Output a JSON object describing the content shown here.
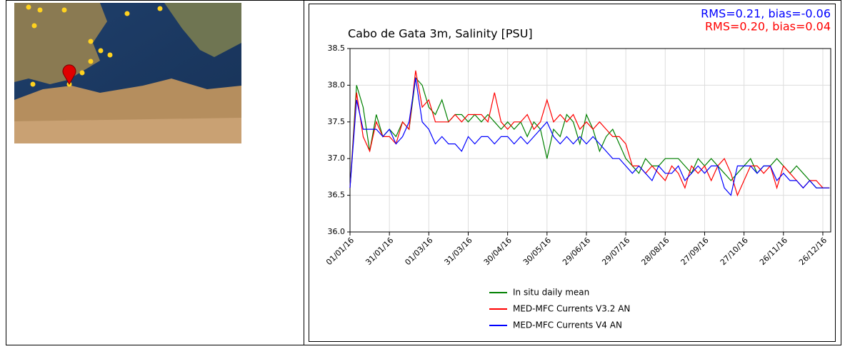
{
  "chart_data": {
    "type": "line",
    "title": "Cabo de Gata 3m, Salinity [PSU]",
    "annotations": [
      {
        "text": "RMS=0.21, bias=-0.06",
        "color": "#0000ff"
      },
      {
        "text": "RMS=0.20, bias=0.04",
        "color": "#ff0000"
      }
    ],
    "x": [
      "01/01/16",
      "06/01/16",
      "11/01/16",
      "16/01/16",
      "21/01/16",
      "26/01/16",
      "31/01/16",
      "05/02/16",
      "10/02/16",
      "15/02/16",
      "20/02/16",
      "25/02/16",
      "01/03/16",
      "06/03/16",
      "11/03/16",
      "16/03/16",
      "21/03/16",
      "26/03/16",
      "31/03/16",
      "05/04/16",
      "10/04/16",
      "15/04/16",
      "20/04/16",
      "25/04/16",
      "30/04/16",
      "05/05/16",
      "10/05/16",
      "15/05/16",
      "20/05/16",
      "25/05/16",
      "30/05/16",
      "04/06/16",
      "09/06/16",
      "14/06/16",
      "19/06/16",
      "24/06/16",
      "29/06/16",
      "04/07/16",
      "09/07/16",
      "14/07/16",
      "19/07/16",
      "24/07/16",
      "29/07/16",
      "03/08/16",
      "08/08/16",
      "13/08/16",
      "18/08/16",
      "23/08/16",
      "28/08/16",
      "02/09/16",
      "07/09/16",
      "12/09/16",
      "17/09/16",
      "22/09/16",
      "27/09/16",
      "02/10/16",
      "07/10/16",
      "12/10/16",
      "17/10/16",
      "22/10/16",
      "27/10/16",
      "01/11/16",
      "06/11/16",
      "11/11/16",
      "16/11/16",
      "21/11/16",
      "26/11/16",
      "01/12/16",
      "06/12/16",
      "11/12/16",
      "16/12/16",
      "21/12/16",
      "26/12/16",
      "31/12/16"
    ],
    "series": [
      {
        "name": "In situ daily mean",
        "color": "#008000",
        "values": [
          36.6,
          38.0,
          37.7,
          37.1,
          37.6,
          37.3,
          37.4,
          37.3,
          37.5,
          37.4,
          38.1,
          38.0,
          37.7,
          37.6,
          37.8,
          37.5,
          37.6,
          37.6,
          37.5,
          37.6,
          37.5,
          37.6,
          37.5,
          37.4,
          37.5,
          37.4,
          37.5,
          37.3,
          37.5,
          37.4,
          37.0,
          37.4,
          37.3,
          37.6,
          37.5,
          37.2,
          37.6,
          37.4,
          37.1,
          37.3,
          37.4,
          37.2,
          37.0,
          36.9,
          36.8,
          37.0,
          36.9,
          36.9,
          37.0,
          37.0,
          37.0,
          36.9,
          36.8,
          37.0,
          36.9,
          37.0,
          36.9,
          36.8,
          36.7,
          36.8,
          36.9,
          37.0,
          36.8,
          36.9,
          36.9,
          37.0,
          36.9,
          36.8,
          36.9,
          36.8,
          36.7,
          36.6,
          36.6,
          36.6
        ]
      },
      {
        "name": "MED-MFC Currents V3.2 AN",
        "color": "#ff0000",
        "values": [
          36.6,
          37.9,
          37.3,
          37.1,
          37.5,
          37.3,
          37.3,
          37.2,
          37.5,
          37.4,
          38.2,
          37.7,
          37.8,
          37.5,
          37.5,
          37.5,
          37.6,
          37.5,
          37.6,
          37.6,
          37.6,
          37.5,
          37.9,
          37.5,
          37.4,
          37.5,
          37.5,
          37.6,
          37.4,
          37.5,
          37.8,
          37.5,
          37.6,
          37.5,
          37.6,
          37.4,
          37.5,
          37.4,
          37.5,
          37.4,
          37.3,
          37.3,
          37.2,
          36.9,
          36.9,
          36.8,
          36.9,
          36.8,
          36.7,
          36.9,
          36.8,
          36.6,
          36.9,
          36.8,
          36.9,
          36.7,
          36.9,
          37.0,
          36.8,
          36.5,
          36.7,
          36.9,
          36.9,
          36.8,
          36.9,
          36.6,
          36.9,
          36.8,
          36.7,
          36.6,
          36.7,
          36.7,
          36.6,
          36.6
        ]
      },
      {
        "name": "MED-MFC Currents V4 AN",
        "color": "#0000ff",
        "values": [
          36.6,
          37.8,
          37.4,
          37.4,
          37.4,
          37.3,
          37.4,
          37.2,
          37.3,
          37.5,
          38.1,
          37.5,
          37.4,
          37.2,
          37.3,
          37.2,
          37.2,
          37.1,
          37.3,
          37.2,
          37.3,
          37.3,
          37.2,
          37.3,
          37.3,
          37.2,
          37.3,
          37.2,
          37.3,
          37.4,
          37.5,
          37.3,
          37.2,
          37.3,
          37.2,
          37.3,
          37.2,
          37.3,
          37.2,
          37.1,
          37.0,
          37.0,
          36.9,
          36.8,
          36.9,
          36.8,
          36.7,
          36.9,
          36.8,
          36.8,
          36.9,
          36.7,
          36.8,
          36.9,
          36.8,
          36.9,
          36.9,
          36.6,
          36.5,
          36.9,
          36.9,
          36.9,
          36.8,
          36.9,
          36.9,
          36.7,
          36.8,
          36.7,
          36.7,
          36.6,
          36.7,
          36.6,
          36.6,
          36.6
        ]
      }
    ],
    "xlim": [
      "01/01/16",
      "01/01/17"
    ],
    "xticks": [
      "01/01/16",
      "31/01/16",
      "01/03/16",
      "31/03/16",
      "30/04/16",
      "30/05/16",
      "29/06/16",
      "29/07/16",
      "28/08/16",
      "27/09/16",
      "27/10/16",
      "26/11/16",
      "26/12/16"
    ],
    "ylim": [
      36.0,
      38.5
    ],
    "yticks": [
      {
        "value": 36.0,
        "label": "36.0"
      },
      36.5,
      {
        "value": 37.0,
        "label": "37.0"
      },
      37.5,
      {
        "value": 38.0,
        "label": "38.0"
      },
      38.5
    ],
    "grid": true
  }
}
